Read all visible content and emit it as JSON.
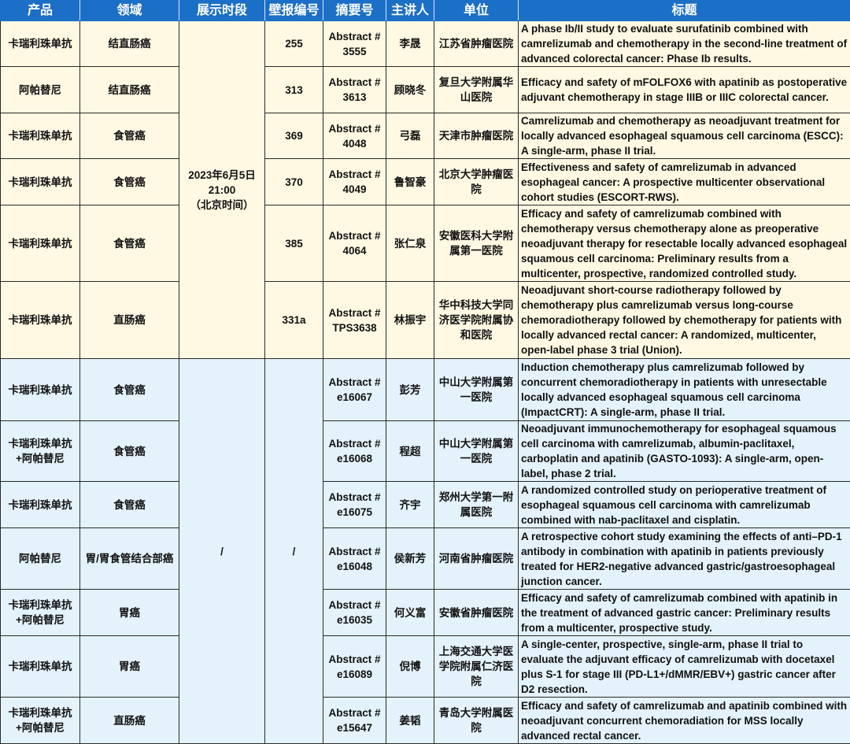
{
  "colors": {
    "header": "#1c6fc6",
    "section1": "#fff8e3",
    "section2": "#e3f2fb"
  },
  "headers": [
    "产品",
    "领域",
    "展示时段",
    "壁报编号",
    "摘要号",
    "主讲人",
    "单位",
    "标题"
  ],
  "section1_time": "2023年6月5日\n21:00\n（北京时间）",
  "section2_time": "/",
  "section2_poster": "/",
  "rows": [
    {
      "product": "卡瑞利珠单抗",
      "field": "结直肠癌",
      "poster": "255",
      "abstract": "Abstract # 3555",
      "speaker": "李晟",
      "unit": "江苏省肿瘤医院",
      "title": "A phase Ib/II study to evaluate surufatinib combined with camrelizumab and chemotherapy in the second-line treatment of advanced colorectal cancer: Phase Ib results."
    },
    {
      "product": "阿帕替尼",
      "field": "结直肠癌",
      "poster": "313",
      "abstract": "Abstract # 3613",
      "speaker": "顾晓冬",
      "unit": "复旦大学附属华山医院",
      "title": "Efficacy and safety of mFOLFOX6 with apatinib as postoperative adjuvant chemotherapy in stage IIIB or IIIC colorectal cancer."
    },
    {
      "product": "卡瑞利珠单抗",
      "field": "食管癌",
      "poster": "369",
      "abstract": "Abstract # 4048",
      "speaker": "弓磊",
      "unit": "天津市肿瘤医院",
      "title": "Camrelizumab and chemotherapy as neoadjuvant treatment for locally advanced esophageal squamous cell carcinoma (ESCC): A single-arm, phase II trial."
    },
    {
      "product": "卡瑞利珠单抗",
      "field": "食管癌",
      "poster": "370",
      "abstract": "Abstract # 4049",
      "speaker": "鲁智豪",
      "unit": "北京大学肿瘤医院",
      "title": "Effectiveness and safety of camrelizumab in advanced esophageal cancer: A prospective multicenter observational cohort studies (ESCORT-RWS)."
    },
    {
      "product": "卡瑞利珠单抗",
      "field": "食管癌",
      "poster": "385",
      "abstract": "Abstract # 4064",
      "speaker": "张仁泉",
      "unit": "安徽医科大学附属第一医院",
      "title": "Efficacy and safety of camrelizumab combined with chemotherapy versus chemotherapy alone as preoperative neoadjuvant therapy for resectable locally advanced esophageal squamous cell carcinoma: Preliminary results from a multicenter, prospective, randomized controlled study."
    },
    {
      "product": "卡瑞利珠单抗",
      "field": "直肠癌",
      "poster": "331a",
      "abstract": "Abstract # TPS3638",
      "speaker": "林振宇",
      "unit": "华中科技大学同济医学院附属协和医院",
      "title": "Neoadjuvant short-course radiotherapy followed by chemotherapy plus camrelizumab versus long-course chemoradiotherapy followed by chemotherapy for patients with locally advanced rectal cancer: A randomized, multicenter, open-label phase 3 trial (Union)."
    },
    {
      "product": "卡瑞利珠单抗",
      "field": "食管癌",
      "abstract": "Abstract # e16067",
      "speaker": "彭芳",
      "unit": "中山大学附属第一医院",
      "title": "Induction chemotherapy plus camrelizumab followed by concurrent chemoradiotherapy in patients with unresectable locally advanced esophageal squamous cell carcinoma (ImpactCRT): A single-arm, phase II trial."
    },
    {
      "product": "卡瑞利珠单抗+阿帕替尼",
      "field": "食管癌",
      "abstract": "Abstract # e16068",
      "speaker": "程超",
      "unit": "中山大学附属第一医院",
      "title": "Neoadjuvant immunochemotherapy for esophageal squamous cell carcinoma with camrelizumab, albumin-paclitaxel, carboplatin and apatinib (GASTO-1093): A single-arm, open-label, phase 2 trial."
    },
    {
      "product": "卡瑞利珠单抗",
      "field": "食管癌",
      "abstract": "Abstract # e16075",
      "speaker": "齐宇",
      "unit": "郑州大学第一附属医院",
      "title": "A randomized controlled study on perioperative treatment of esophageal squamous cell carcinoma with camrelizumab combined with nab-paclitaxel and cisplatin."
    },
    {
      "product": "阿帕替尼",
      "field": "胃/胃食管结合部癌",
      "abstract": "Abstract # e16048",
      "speaker": "侯新芳",
      "unit": "河南省肿瘤医院",
      "title": "A retrospective cohort study examining the effects of anti–PD-1 antibody in combination with apatinib in patients previously treated for HER2-negative advanced gastric/gastroesophageal junction cancer."
    },
    {
      "product": "卡瑞利珠单抗+阿帕替尼",
      "field": "胃癌",
      "abstract": "Abstract # e16035",
      "speaker": "何义富",
      "unit": "安徽省肿瘤医院",
      "title": "Efficacy and safety of camrelizumab combined with apatinib in the treatment of advanced gastric cancer: Preliminary results from a multicenter, prospective study."
    },
    {
      "product": "卡瑞利珠单抗",
      "field": "胃癌",
      "abstract": "Abstract # e16089",
      "speaker": "倪博",
      "unit": "上海交通大学医学院附属仁济医院",
      "title": "A single-center, prospective, single-arm, phase II trial to evaluate the adjuvant efficacy of camrelizumab with docetaxel plus S-1 for stage III (PD-L1+/dMMR/EBV+) gastric cancer after D2 resection."
    },
    {
      "product": "卡瑞利珠单抗+阿帕替尼",
      "field": "直肠癌",
      "abstract": "Abstract # e15647",
      "speaker": "姜韬",
      "unit": "青岛大学附属医院",
      "title": "Efficacy and safety of camrelizumab and apatinib combined with neoadjuvant concurrent chemoradiation for MSS locally advanced rectal cancer."
    }
  ]
}
